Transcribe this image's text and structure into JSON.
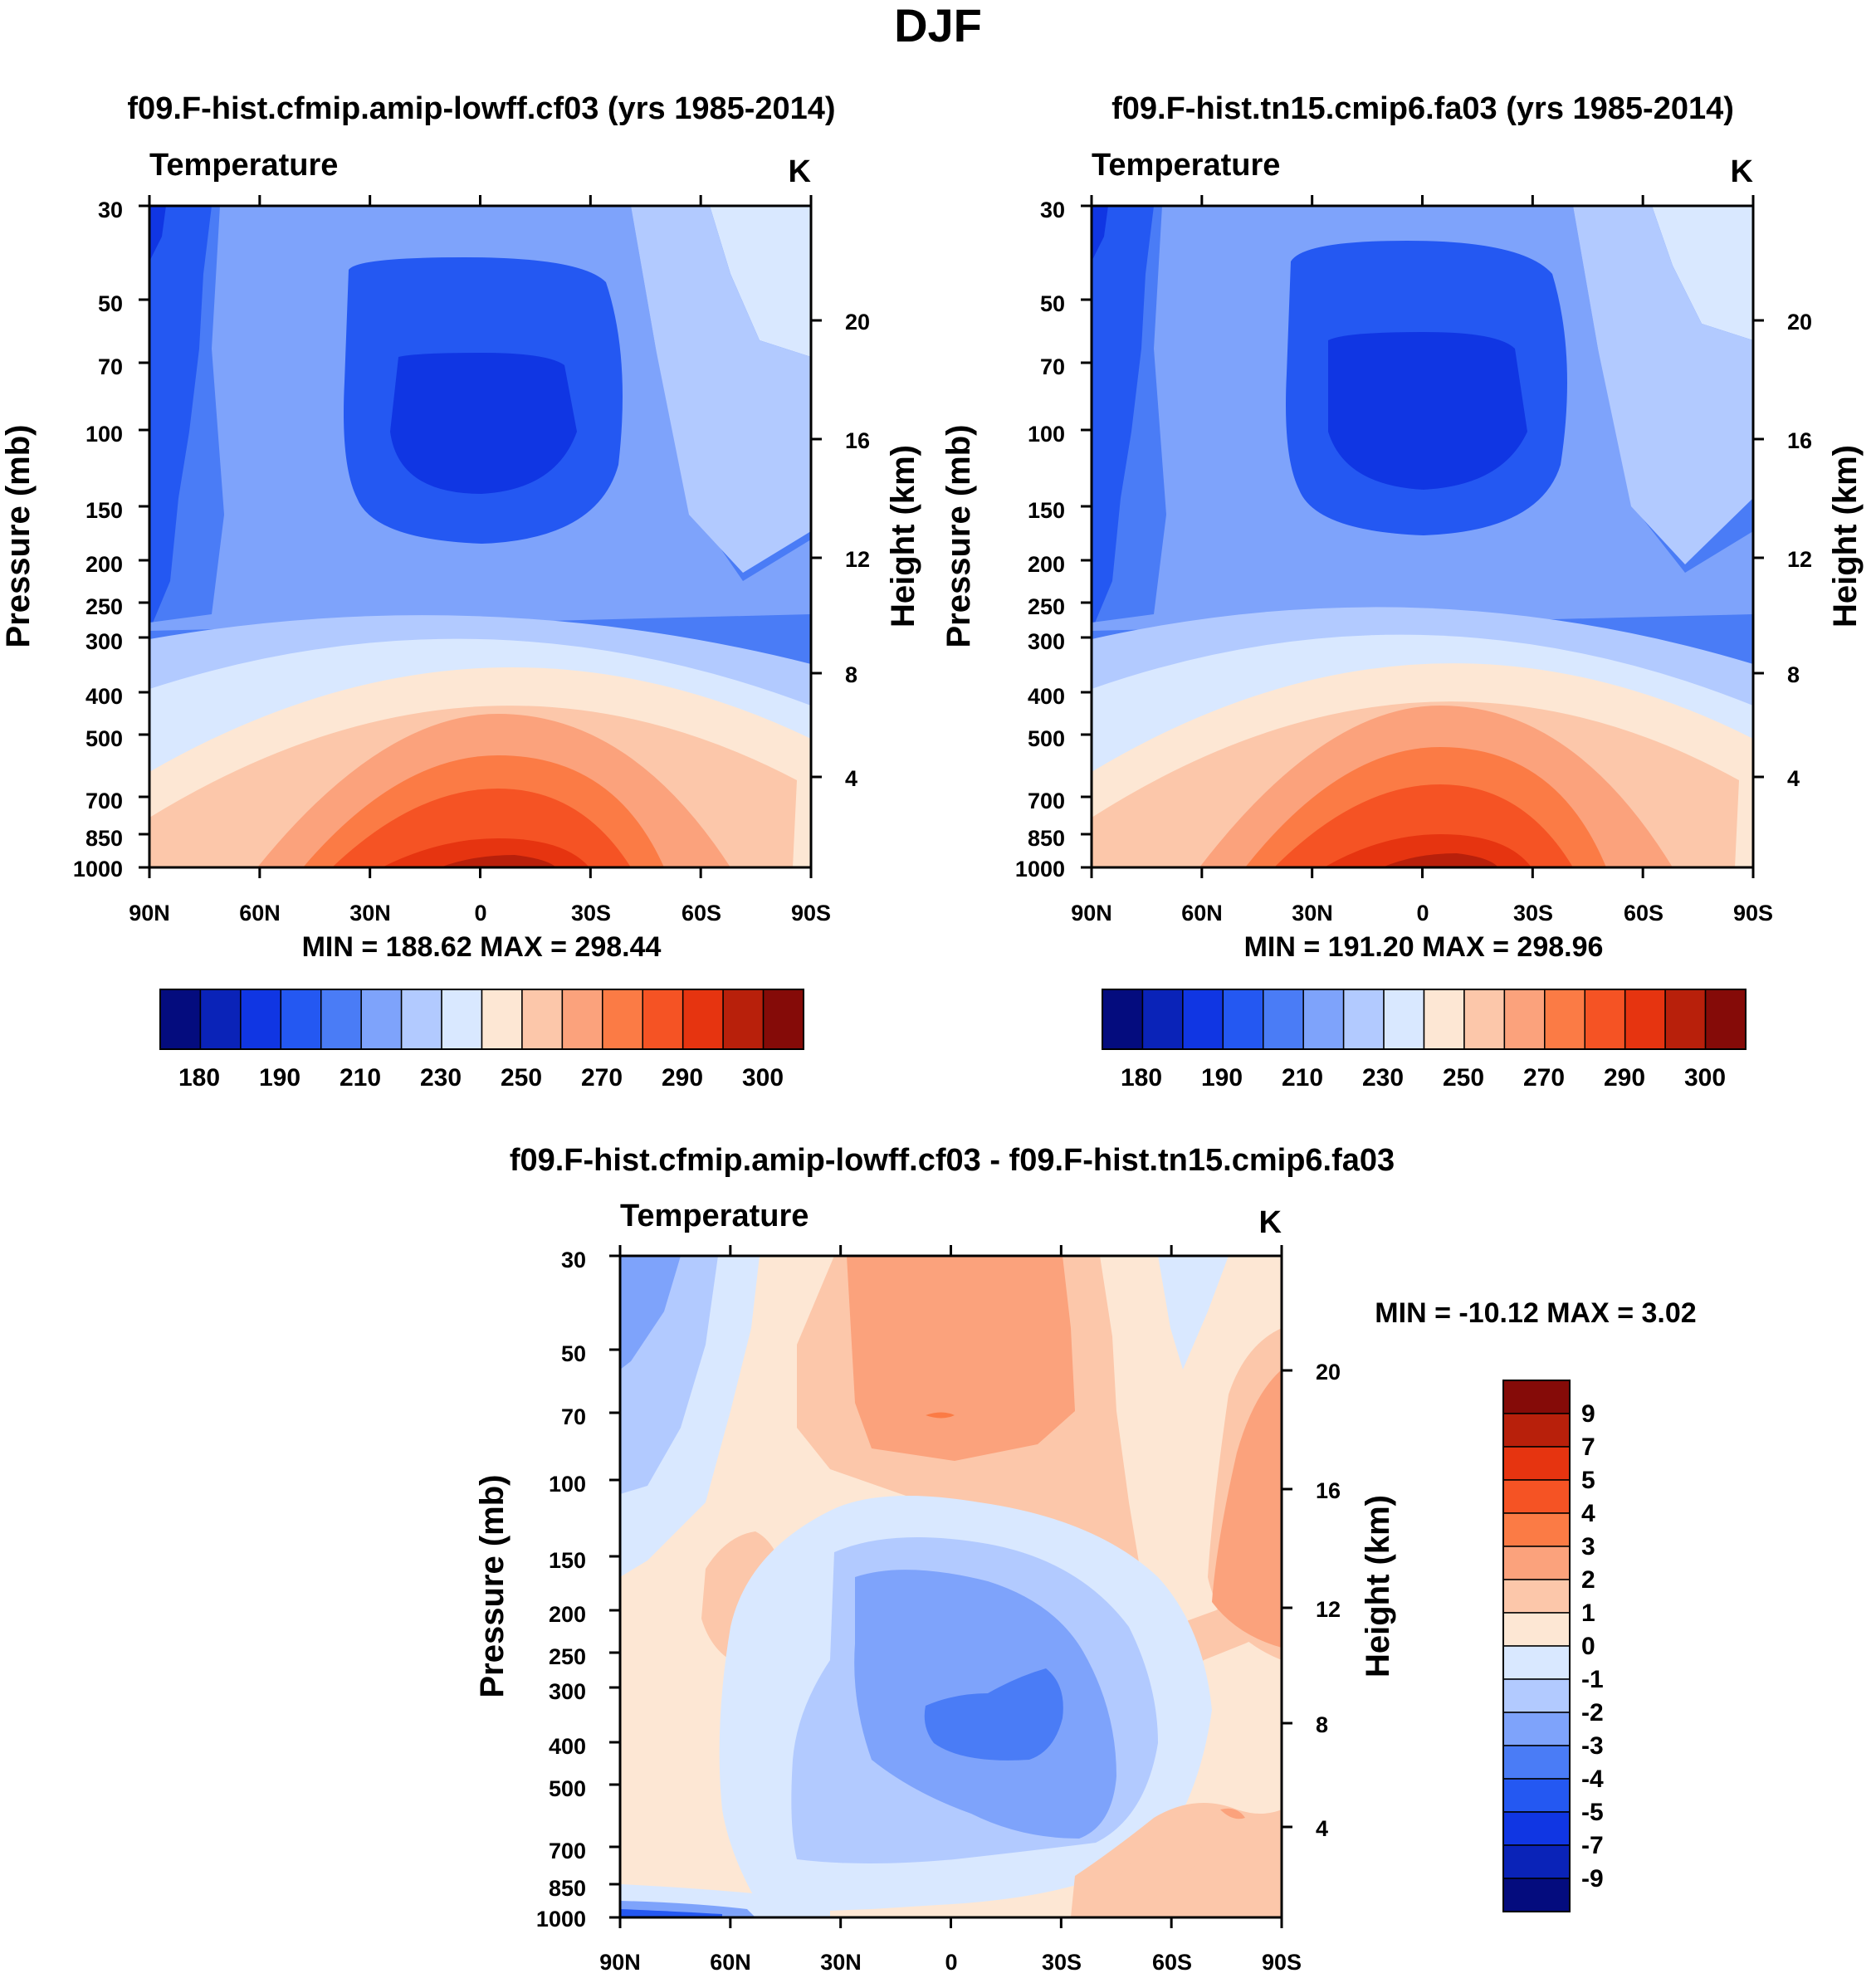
{
  "figure_title": "DJF",
  "chart_data": [
    {
      "type": "contour",
      "title": "f09.F-hist.cfmip.amip-lowff.cf03 (yrs 1985-2014)",
      "variable": "Temperature",
      "units": "K",
      "ylabel": "Pressure (mb)",
      "y2label": "Height (km)",
      "x_ticks": [
        "90N",
        "60N",
        "30N",
        "0",
        "30S",
        "60S",
        "90S"
      ],
      "y_ticks": [
        "30",
        "50",
        "70",
        "100",
        "150",
        "200",
        "250",
        "300",
        "400",
        "500",
        "700",
        "850",
        "1000"
      ],
      "y2_ticks": [
        "20",
        "16",
        "12",
        "8",
        "4"
      ],
      "stats": "MIN = 188.62  MAX = 298.44",
      "colorbar_labels": [
        "180",
        "190",
        "210",
        "230",
        "250",
        "270",
        "290",
        "300"
      ]
    },
    {
      "type": "contour",
      "title": "f09.F-hist.tn15.cmip6.fa03 (yrs 1985-2014)",
      "variable": "Temperature",
      "units": "K",
      "ylabel": "Pressure (mb)",
      "y2label": "Height (km)",
      "x_ticks": [
        "90N",
        "60N",
        "30N",
        "0",
        "30S",
        "60S",
        "90S"
      ],
      "y_ticks": [
        "30",
        "50",
        "70",
        "100",
        "150",
        "200",
        "250",
        "300",
        "400",
        "500",
        "700",
        "850",
        "1000"
      ],
      "y2_ticks": [
        "20",
        "16",
        "12",
        "8",
        "4"
      ],
      "stats": "MIN = 191.20  MAX = 298.96",
      "colorbar_labels": [
        "180",
        "190",
        "210",
        "230",
        "250",
        "270",
        "290",
        "300"
      ]
    },
    {
      "type": "contour",
      "title": "f09.F-hist.cfmip.amip-lowff.cf03 - f09.F-hist.tn15.cmip6.fa03",
      "variable": "Temperature",
      "units": "K",
      "ylabel": "Pressure (mb)",
      "y2label": "Height (km)",
      "x_ticks": [
        "90N",
        "60N",
        "30N",
        "0",
        "30S",
        "60S",
        "90S"
      ],
      "y_ticks": [
        "30",
        "50",
        "70",
        "100",
        "150",
        "200",
        "250",
        "300",
        "400",
        "500",
        "700",
        "850",
        "1000"
      ],
      "y2_ticks": [
        "20",
        "16",
        "12",
        "8",
        "4"
      ],
      "stats": "MIN = -10.12  MAX =   3.02",
      "colorbar_labels": [
        "9",
        "7",
        "5",
        "4",
        "3",
        "2",
        "1",
        "0",
        "-1",
        "-2",
        "-3",
        "-4",
        "-5",
        "-7",
        "-9"
      ]
    }
  ],
  "colors": {
    "seq": [
      "#040c7e",
      "#0a23b8",
      "#1036e3",
      "#2458f2",
      "#4a7cf6",
      "#7ea3fb",
      "#b2caff",
      "#d9e8ff",
      "#fde7d4",
      "#fcc7aa",
      "#fba27c",
      "#fb7b45",
      "#f55324",
      "#e63410",
      "#b8200b",
      "#850b08"
    ],
    "diff": [
      "#040c7e",
      "#0a23b8",
      "#1036e3",
      "#2458f2",
      "#4a7cf6",
      "#7ea3fb",
      "#b2caff",
      "#d9e8ff",
      "#fde7d4",
      "#fcc7aa",
      "#fba27c",
      "#fb7b45",
      "#f55324",
      "#e63410",
      "#b8200b",
      "#850b08"
    ]
  }
}
